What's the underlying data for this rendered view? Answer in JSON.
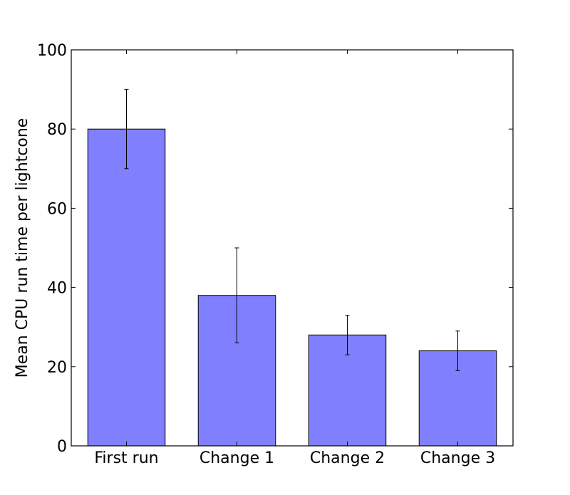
{
  "chart_data": {
    "type": "bar",
    "title": "",
    "xlabel": "",
    "ylabel": "Mean CPU run time per lightcone",
    "categories": [
      "First run",
      "Change 1",
      "Change 2",
      "Change 3"
    ],
    "values": [
      80,
      38,
      28,
      24
    ],
    "error_low": [
      70,
      26,
      23,
      19
    ],
    "error_high": [
      90,
      50,
      33,
      29
    ],
    "ylim": [
      0,
      100
    ],
    "yticks": [
      0,
      20,
      40,
      60,
      80,
      100
    ],
    "grid": false,
    "bar_color": "#8080ff",
    "edge_color": "#000000"
  }
}
